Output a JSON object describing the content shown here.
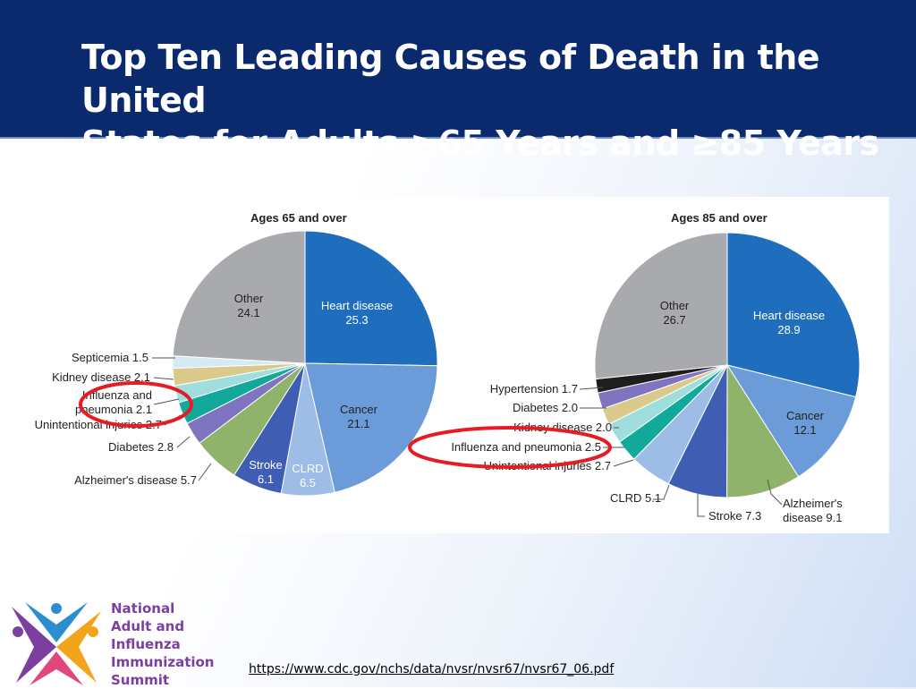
{
  "header": {
    "title_line1": "Top Ten Leading Causes of Death in the United",
    "title_line2": "States for Adults ≥65 Years and ≥85 Years"
  },
  "chart_data": [
    {
      "type": "pie",
      "title": "Ages 65 and over",
      "slices": [
        {
          "label": "Heart disease",
          "value": 25.3,
          "color": "#1f6dbd"
        },
        {
          "label": "Cancer",
          "value": 21.1,
          "color": "#6b9bd8"
        },
        {
          "label": "CLRD",
          "value": 6.5,
          "color": "#9dbde6"
        },
        {
          "label": "Stroke",
          "value": 6.1,
          "color": "#3f5db2"
        },
        {
          "label": "Alzheimer's disease",
          "value": 5.7,
          "color": "#8fb36b"
        },
        {
          "label": "Diabetes",
          "value": 2.8,
          "color": "#7f74c0"
        },
        {
          "label": "Unintentional injuries",
          "value": 2.7,
          "color": "#13a99a"
        },
        {
          "label": "Influenza and pneumonia",
          "value": 2.1,
          "color": "#9fdedd"
        },
        {
          "label": "Kidney disease",
          "value": 2.1,
          "color": "#d9c98a"
        },
        {
          "label": "Septicemia",
          "value": 1.5,
          "color": "#d4eaf5"
        },
        {
          "label": "Other",
          "value": 24.1,
          "color": "#a9aaad"
        }
      ],
      "label_text": {
        "heart": [
          "Heart disease",
          "25.3"
        ],
        "cancer": [
          "Cancer",
          "21.1"
        ],
        "clrd": [
          "CLRD",
          "6.5"
        ],
        "stroke": [
          "Stroke",
          "6.1"
        ],
        "other": [
          "Other",
          "24.1"
        ],
        "septicemia": "Septicemia 1.5",
        "kidney": "Kidney disease 2.1",
        "flu": [
          "Influenza and",
          "pneumonia 2.1"
        ],
        "injuries": "Unintentional injuries 2.7",
        "diabetes": "Diabetes 2.8",
        "alzheimers": "Alzheimer's disease 5.7"
      }
    },
    {
      "type": "pie",
      "title": "Ages 85 and over",
      "slices": [
        {
          "label": "Heart disease",
          "value": 28.9,
          "color": "#1f6dbd"
        },
        {
          "label": "Cancer",
          "value": 12.1,
          "color": "#6b9bd8"
        },
        {
          "label": "Alzheimer's disease",
          "value": 9.1,
          "color": "#8fb36b"
        },
        {
          "label": "Stroke",
          "value": 7.3,
          "color": "#3f5db2"
        },
        {
          "label": "CLRD",
          "value": 5.1,
          "color": "#9dbde6"
        },
        {
          "label": "Unintentional injuries",
          "value": 2.7,
          "color": "#13a99a"
        },
        {
          "label": "Influenza and pneumonia",
          "value": 2.5,
          "color": "#9fdedd"
        },
        {
          "label": "Kidney disease",
          "value": 2.0,
          "color": "#d9c98a"
        },
        {
          "label": "Diabetes",
          "value": 2.0,
          "color": "#7f74c0"
        },
        {
          "label": "Hypertension",
          "value": 1.7,
          "color": "#1e1e1e"
        },
        {
          "label": "Other",
          "value": 26.7,
          "color": "#a9aaad"
        }
      ],
      "label_text": {
        "heart": [
          "Heart disease",
          "28.9"
        ],
        "cancer": [
          "Cancer",
          "12.1"
        ],
        "other": [
          "Other",
          "26.7"
        ],
        "alzheimers": [
          "Alzheimer's",
          "disease 9.1"
        ],
        "stroke": "Stroke 7.3",
        "clrd": "CLRD 5.1",
        "injuries": "Unintentional injuries 2.7",
        "flu": "Influenza and pneumonia 2.5",
        "kidney": "Kidney disease 2.0",
        "diabetes": "Diabetes 2.0",
        "hypertension": "Hypertension 1.7"
      }
    }
  ],
  "logo": {
    "lines": [
      "National",
      "Adult and",
      "Influenza",
      "Immunization",
      "Summit"
    ],
    "colors": [
      "#7b3fa0",
      "#f2a51a",
      "#2b8fcf",
      "#e0487d"
    ]
  },
  "source": "https://www.cdc.gov/nchs/data/nvsr/nvsr67/nvsr67_06.pdf"
}
